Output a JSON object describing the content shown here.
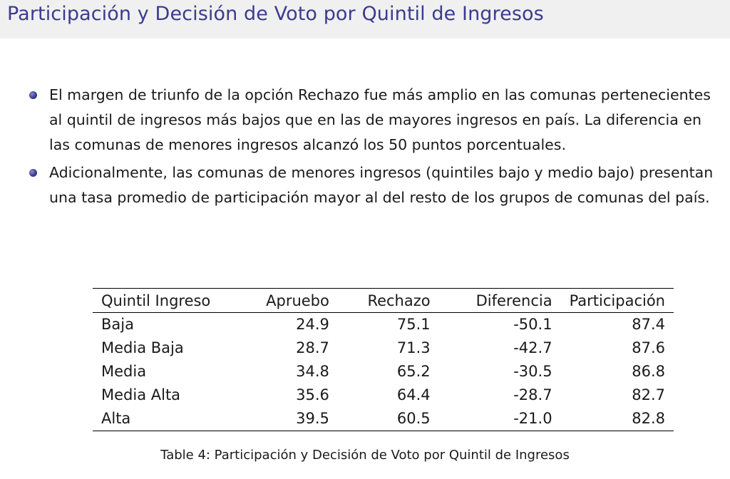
{
  "header": {
    "title": "Participación y Decisión de Voto por Quintil de Ingresos"
  },
  "bullets": [
    "El margen de triunfo de la opción Rechazo fue más amplio en las comunas pertenecientes al quintil de ingresos más bajos que en las de mayores ingresos en país. La diferencia en las comunas de menores ingresos alcanzó los 50 puntos porcentuales.",
    "Adicionalmente, las comunas de menores ingresos (quintiles bajo y medio bajo) presentan una tasa promedio de participación mayor al del resto de los grupos de comunas del país."
  ],
  "table": {
    "headers": [
      "Quintil Ingreso",
      "Apruebo",
      "Rechazo",
      "Diferencia",
      "Participación"
    ],
    "rows": [
      [
        "Baja",
        "24.9",
        "75.1",
        "-50.1",
        "87.4"
      ],
      [
        "Media Baja",
        "28.7",
        "71.3",
        "-42.7",
        "87.6"
      ],
      [
        "Media",
        "34.8",
        "65.2",
        "-30.5",
        "86.8"
      ],
      [
        "Media Alta",
        "35.6",
        "64.4",
        "-28.7",
        "82.7"
      ],
      [
        "Alta",
        "39.5",
        "60.5",
        "-21.0",
        "82.8"
      ]
    ],
    "caption": "Table 4: Participación y Decisión de Voto por Quintil de Ingresos"
  }
}
